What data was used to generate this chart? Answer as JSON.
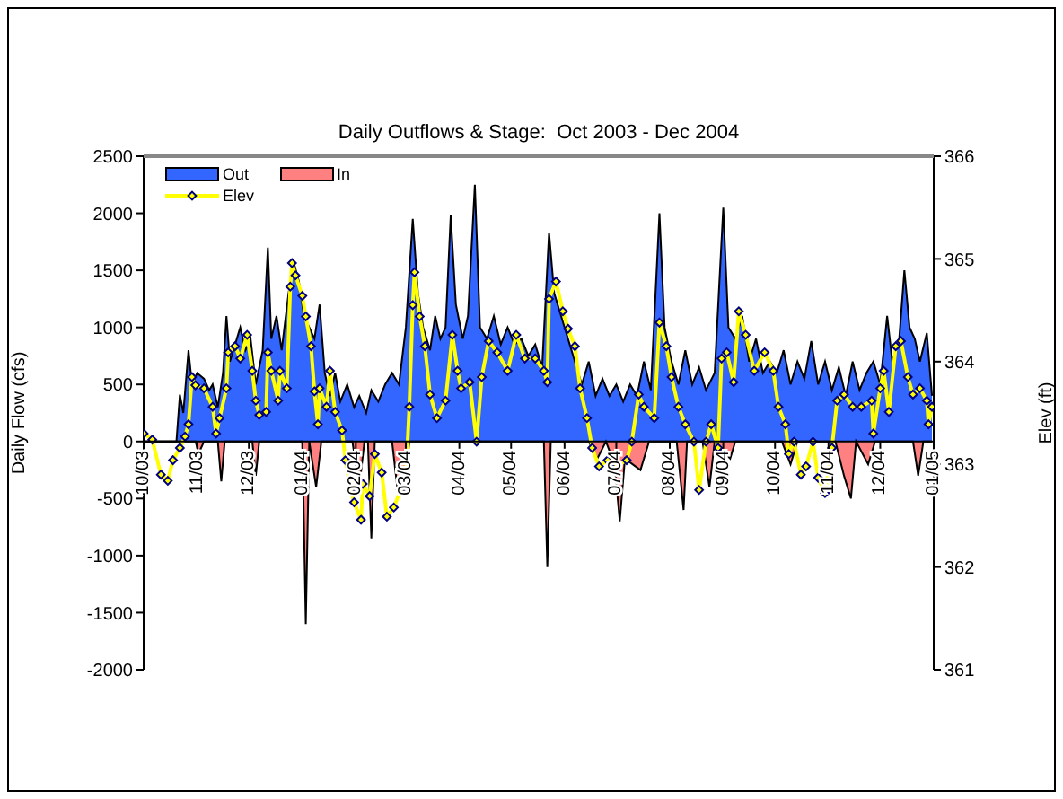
{
  "chart_data": {
    "type": "area",
    "title": "Daily Outflows & Stage:  Oct 2003 - Dec 2004",
    "ylabel": "Daily Flow (cfs)",
    "y2label": "Elev (ft)",
    "xlim": [
      "2003-10-01",
      "2005-01-01"
    ],
    "xticks": [
      {
        "value": "2003-10-01",
        "label": "10/03"
      },
      {
        "value": "2003-11-01",
        "label": "11/03"
      },
      {
        "value": "2003-12-01",
        "label": "12/03"
      },
      {
        "value": "2004-01-01",
        "label": "01/04"
      },
      {
        "value": "2004-02-01",
        "label": "02/04"
      },
      {
        "value": "2004-03-01",
        "label": "03/04"
      },
      {
        "value": "2004-04-01",
        "label": "04/04"
      },
      {
        "value": "2004-05-01",
        "label": "05/04"
      },
      {
        "value": "2004-06-01",
        "label": "06/04"
      },
      {
        "value": "2004-07-01",
        "label": "07/04"
      },
      {
        "value": "2004-08-01",
        "label": "08/04"
      },
      {
        "value": "2004-09-01",
        "label": "09/04"
      },
      {
        "value": "2004-10-01",
        "label": "10/04"
      },
      {
        "value": "2004-11-01",
        "label": "11/04"
      },
      {
        "value": "2004-12-01",
        "label": "12/04"
      },
      {
        "value": "2005-01-01",
        "label": "01/05"
      }
    ],
    "ylim": [
      -2000,
      2500
    ],
    "yticks": [
      -2000,
      -1500,
      -1000,
      -500,
      0,
      500,
      1000,
      1500,
      2000,
      2500
    ],
    "y2lim": [
      361,
      366
    ],
    "y2ticks": [
      361,
      362,
      363,
      364,
      365,
      366
    ],
    "legend": "top left",
    "grid": false,
    "series": [
      {
        "name": "Out",
        "type": "area",
        "color": "#3366ff",
        "x": [
          "2003-10-01",
          "2003-10-20",
          "2003-10-22",
          "2003-10-24",
          "2003-10-27",
          "2003-10-29",
          "2003-11-01",
          "2003-11-05",
          "2003-11-08",
          "2003-11-10",
          "2003-11-13",
          "2003-11-16",
          "2003-11-18",
          "2003-11-20",
          "2003-11-23",
          "2003-11-26",
          "2003-11-29",
          "2003-12-02",
          "2003-12-05",
          "2003-12-09",
          "2003-12-12",
          "2003-12-14",
          "2003-12-17",
          "2003-12-20",
          "2003-12-24",
          "2003-12-27",
          "2003-12-30",
          "2004-01-02",
          "2004-01-05",
          "2004-01-08",
          "2004-01-11",
          "2004-01-14",
          "2004-01-17",
          "2004-01-20",
          "2004-01-23",
          "2004-01-27",
          "2004-01-31",
          "2004-02-03",
          "2004-02-07",
          "2004-02-10",
          "2004-02-14",
          "2004-02-18",
          "2004-02-22",
          "2004-02-26",
          "2004-03-01",
          "2004-03-05",
          "2004-03-08",
          "2004-03-11",
          "2004-03-15",
          "2004-03-18",
          "2004-03-21",
          "2004-03-24",
          "2004-03-27",
          "2004-03-30",
          "2004-04-03",
          "2004-04-06",
          "2004-04-10",
          "2004-04-13",
          "2004-04-17",
          "2004-04-21",
          "2004-04-25",
          "2004-04-29",
          "2004-05-03",
          "2004-05-07",
          "2004-05-11",
          "2004-05-15",
          "2004-05-19",
          "2004-05-23",
          "2004-05-26",
          "2004-05-30",
          "2004-06-03",
          "2004-06-07",
          "2004-06-11",
          "2004-06-15",
          "2004-06-19",
          "2004-06-23",
          "2004-06-27",
          "2004-07-01",
          "2004-07-05",
          "2004-07-09",
          "2004-07-13",
          "2004-07-17",
          "2004-07-21",
          "2004-07-26",
          "2004-07-29",
          "2004-08-02",
          "2004-08-06",
          "2004-08-10",
          "2004-08-14",
          "2004-08-18",
          "2004-08-22",
          "2004-08-27",
          "2004-09-01",
          "2004-09-04",
          "2004-09-08",
          "2004-09-12",
          "2004-09-16",
          "2004-09-20",
          "2004-09-24",
          "2004-09-28",
          "2004-10-02",
          "2004-10-06",
          "2004-10-10",
          "2004-10-14",
          "2004-10-18",
          "2004-10-22",
          "2004-10-26",
          "2004-10-30",
          "2004-11-03",
          "2004-11-07",
          "2004-11-11",
          "2004-11-15",
          "2004-11-19",
          "2004-11-23",
          "2004-11-27",
          "2004-12-01",
          "2004-12-05",
          "2004-12-08",
          "2004-12-12",
          "2004-12-15",
          "2004-12-18",
          "2004-12-21",
          "2004-12-24",
          "2004-12-28",
          "2004-12-31"
        ],
        "values": [
          0,
          0,
          410,
          250,
          800,
          500,
          600,
          550,
          450,
          500,
          300,
          600,
          1100,
          700,
          850,
          1000,
          800,
          900,
          500,
          800,
          1700,
          900,
          1100,
          800,
          1300,
          1570,
          1400,
          1100,
          1000,
          900,
          1200,
          600,
          400,
          600,
          350,
          500,
          300,
          400,
          250,
          450,
          350,
          500,
          600,
          500,
          1000,
          1950,
          1300,
          1000,
          800,
          1100,
          900,
          1000,
          1980,
          1200,
          900,
          1100,
          2250,
          1000,
          900,
          1100,
          850,
          1000,
          850,
          900,
          750,
          850,
          650,
          1830,
          1300,
          1100,
          900,
          700,
          500,
          700,
          400,
          550,
          400,
          500,
          350,
          500,
          400,
          700,
          450,
          2000,
          1000,
          700,
          500,
          800,
          500,
          650,
          450,
          600,
          2050,
          1000,
          900,
          1100,
          700,
          900,
          600,
          700,
          600,
          800,
          500,
          700,
          550,
          880,
          500,
          700,
          450,
          650,
          400,
          700,
          450,
          600,
          700,
          500,
          1100,
          700,
          900,
          1500,
          1000,
          900,
          700,
          950,
          400
        ]
      },
      {
        "name": "In",
        "type": "area",
        "color": "#ff8080",
        "x": [
          "2003-10-01",
          "2003-10-31",
          "2003-11-02",
          "2003-11-05",
          "2003-11-13",
          "2003-11-15",
          "2003-11-17",
          "2003-12-03",
          "2003-12-05",
          "2003-12-07",
          "2004-01-01",
          "2004-01-03",
          "2004-01-05",
          "2004-01-09",
          "2004-01-12",
          "2004-01-30",
          "2004-02-03",
          "2004-02-06",
          "2004-02-08",
          "2004-02-10",
          "2004-02-12",
          "2004-02-22",
          "2004-02-25",
          "2004-03-01",
          "2004-03-03",
          "2004-05-20",
          "2004-05-22",
          "2004-05-24",
          "2004-06-15",
          "2004-06-20",
          "2004-06-25",
          "2004-06-30",
          "2004-07-03",
          "2004-07-06",
          "2004-07-15",
          "2004-07-20",
          "2004-08-05",
          "2004-08-09",
          "2004-08-11",
          "2004-08-20",
          "2004-08-24",
          "2004-08-27",
          "2004-09-05",
          "2004-09-08",
          "2004-10-05",
          "2004-10-10",
          "2004-10-14",
          "2004-11-05",
          "2004-11-10",
          "2004-11-14",
          "2004-11-17",
          "2004-11-24",
          "2004-11-28",
          "2004-12-20",
          "2004-12-23",
          "2004-12-26",
          "2004-12-31"
        ],
        "values": [
          0,
          0,
          -100,
          0,
          0,
          -350,
          0,
          0,
          -300,
          0,
          0,
          -1600,
          0,
          -400,
          0,
          0,
          -400,
          0,
          0,
          -850,
          0,
          0,
          -400,
          -300,
          0,
          0,
          -1100,
          0,
          0,
          -150,
          0,
          -200,
          -700,
          -150,
          -250,
          0,
          0,
          -600,
          0,
          0,
          -400,
          0,
          -150,
          0,
          0,
          -200,
          0,
          0,
          -300,
          -500,
          0,
          -200,
          0,
          0,
          -300,
          0,
          0
        ]
      },
      {
        "name": "Elev",
        "type": "line",
        "axis": "y2",
        "color": "#ffff00",
        "marker": "diamond",
        "x": [
          "2003-10-01",
          "2003-10-06",
          "2003-10-11",
          "2003-10-15",
          "2003-10-18",
          "2003-10-22",
          "2003-10-25",
          "2003-10-27",
          "2003-10-29",
          "2003-10-31",
          "2003-11-05",
          "2003-11-10",
          "2003-11-12",
          "2003-11-14",
          "2003-11-18",
          "2003-11-19",
          "2003-11-23",
          "2003-11-26",
          "2003-11-30",
          "2003-12-03",
          "2003-12-05",
          "2003-12-07",
          "2003-12-11",
          "2003-12-12",
          "2003-12-14",
          "2003-12-18",
          "2003-12-19",
          "2003-12-23",
          "2003-12-25",
          "2003-12-26",
          "2003-12-28",
          "2004-01-01",
          "2004-01-03",
          "2004-01-06",
          "2004-01-08",
          "2004-01-10",
          "2004-01-11",
          "2004-01-15",
          "2004-01-17",
          "2004-01-20",
          "2004-01-24",
          "2004-01-26",
          "2004-01-29",
          "2004-01-31",
          "2004-02-04",
          "2004-02-05",
          "2004-02-09",
          "2004-02-12",
          "2004-02-16",
          "2004-02-19",
          "2004-02-23",
          "2004-02-27",
          "2004-03-01",
          "2004-03-03",
          "2004-03-05",
          "2004-03-06",
          "2004-03-09",
          "2004-03-12",
          "2004-03-15",
          "2004-03-19",
          "2004-03-24",
          "2004-03-28",
          "2004-03-31",
          "2004-04-02",
          "2004-04-07",
          "2004-04-11",
          "2004-04-14",
          "2004-04-18",
          "2004-04-23",
          "2004-04-29",
          "2004-05-04",
          "2004-05-09",
          "2004-05-15",
          "2004-05-20",
          "2004-05-22",
          "2004-05-23",
          "2004-05-27",
          "2004-05-31",
          "2004-06-03",
          "2004-06-07",
          "2004-06-10",
          "2004-06-14",
          "2004-06-17",
          "2004-06-21",
          "2004-06-26",
          "2004-07-01",
          "2004-07-07",
          "2004-07-10",
          "2004-07-14",
          "2004-07-17",
          "2004-07-23",
          "2004-07-26",
          "2004-07-30",
          "2004-08-02",
          "2004-08-06",
          "2004-08-10",
          "2004-08-15",
          "2004-08-18",
          "2004-08-22",
          "2004-08-25",
          "2004-08-29",
          "2004-08-31",
          "2004-09-03",
          "2004-09-07",
          "2004-09-10",
          "2004-09-14",
          "2004-09-19",
          "2004-09-25",
          "2004-09-30",
          "2004-10-03",
          "2004-10-07",
          "2004-10-09",
          "2004-10-12",
          "2004-10-16",
          "2004-10-19",
          "2004-10-23",
          "2004-10-26",
          "2004-10-30",
          "2004-11-03",
          "2004-11-06",
          "2004-11-10",
          "2004-11-15",
          "2004-11-20",
          "2004-11-26",
          "2004-11-27",
          "2004-12-01",
          "2004-12-03",
          "2004-12-06",
          "2004-12-10",
          "2004-12-13",
          "2004-12-17",
          "2004-12-20",
          "2004-12-24",
          "2004-12-28",
          "2004-12-29",
          "2004-12-31"
        ],
        "values": [
          363.3,
          363.24,
          362.9,
          362.84,
          363.04,
          363.16,
          363.27,
          363.39,
          363.85,
          363.77,
          363.74,
          363.56,
          363.3,
          363.45,
          363.74,
          364.09,
          364.15,
          364.03,
          364.26,
          363.91,
          363.62,
          363.48,
          363.51,
          364.09,
          363.91,
          363.62,
          363.91,
          363.74,
          364.73,
          364.96,
          364.84,
          364.64,
          364.44,
          364.15,
          363.71,
          363.39,
          363.74,
          363.56,
          363.91,
          363.51,
          363.33,
          363.04,
          362.75,
          362.63,
          362.46,
          362.81,
          362.69,
          363.1,
          362.92,
          362.49,
          362.58,
          362.75,
          362.87,
          363.56,
          364.55,
          364.87,
          364.44,
          364.15,
          363.68,
          363.45,
          363.62,
          364.26,
          363.91,
          363.74,
          363.8,
          363.22,
          363.85,
          364.2,
          364.09,
          363.91,
          364.26,
          364.03,
          364.03,
          363.91,
          363.8,
          364.61,
          364.78,
          364.49,
          364.32,
          364.15,
          363.74,
          363.45,
          363.16,
          362.98,
          363.04,
          362.98,
          363.04,
          363.22,
          363.68,
          363.56,
          363.45,
          364.38,
          364.15,
          363.85,
          363.56,
          363.39,
          363.22,
          362.75,
          363.22,
          363.39,
          363.16,
          364.03,
          364.09,
          363.8,
          364.49,
          364.26,
          363.91,
          364.09,
          363.91,
          363.56,
          363.39,
          363.1,
          363.22,
          362.9,
          362.98,
          363.22,
          362.87,
          362.72,
          363.16,
          363.62,
          363.68,
          363.56,
          363.56,
          363.62,
          363.3,
          363.74,
          363.91,
          363.51,
          364.15,
          364.2,
          363.85,
          363.68,
          363.74,
          363.62,
          363.39,
          363.56
        ]
      }
    ]
  }
}
